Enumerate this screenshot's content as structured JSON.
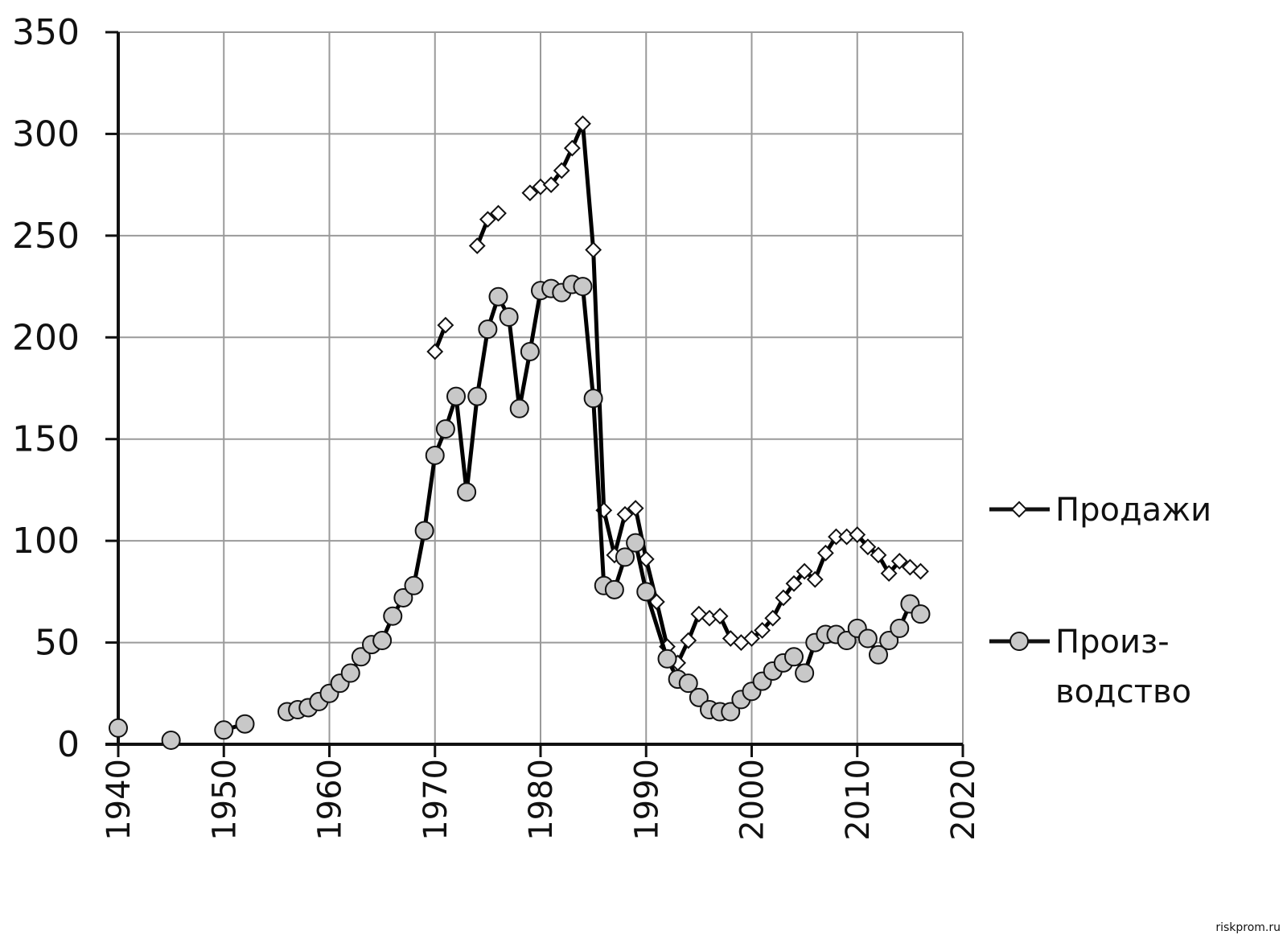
{
  "chart_data": {
    "type": "line",
    "title": "",
    "xlabel": "",
    "ylabel": "",
    "xlim": [
      1940,
      2020
    ],
    "ylim": [
      0,
      350
    ],
    "x_ticks": [
      "1940",
      "1950",
      "1960",
      "1970",
      "1980",
      "1990",
      "2000",
      "2010",
      "2020"
    ],
    "y_ticks": [
      "0",
      "50",
      "100",
      "150",
      "200",
      "250",
      "300",
      "350"
    ],
    "grid": true,
    "legend_position": "right",
    "series": [
      {
        "name": "Продажи",
        "marker": "diamond",
        "marker_fill": "#ffffff",
        "line_color": "#000000",
        "points": [
          [
            1970,
            193
          ],
          [
            1971,
            206
          ],
          [
            1974,
            245
          ],
          [
            1975,
            258
          ],
          [
            1976,
            261
          ],
          [
            1979,
            271
          ],
          [
            1980,
            274
          ],
          [
            1981,
            275
          ],
          [
            1982,
            282
          ],
          [
            1983,
            293
          ],
          [
            1984,
            305
          ],
          [
            1985,
            243
          ],
          [
            1986,
            115
          ],
          [
            1987,
            93
          ],
          [
            1988,
            113
          ],
          [
            1989,
            116
          ],
          [
            1990,
            91
          ],
          [
            1991,
            70
          ],
          [
            1992,
            48
          ],
          [
            1993,
            40
          ],
          [
            1994,
            51
          ],
          [
            1995,
            64
          ],
          [
            1996,
            62
          ],
          [
            1997,
            63
          ],
          [
            1998,
            52
          ],
          [
            1999,
            50
          ],
          [
            2000,
            52
          ],
          [
            2001,
            56
          ],
          [
            2002,
            62
          ],
          [
            2003,
            72
          ],
          [
            2004,
            79
          ],
          [
            2005,
            85
          ],
          [
            2006,
            81
          ],
          [
            2007,
            94
          ],
          [
            2008,
            102
          ],
          [
            2009,
            102
          ],
          [
            2010,
            103
          ],
          [
            2011,
            97
          ],
          [
            2012,
            93
          ],
          [
            2013,
            84
          ],
          [
            2014,
            90
          ],
          [
            2015,
            87
          ],
          [
            2016,
            85
          ]
        ]
      },
      {
        "name": "Произ-водство",
        "marker": "circle",
        "marker_fill": "#c8c8c8",
        "line_color": "#000000",
        "points": [
          [
            1940,
            8
          ],
          [
            1945,
            2
          ],
          [
            1950,
            7
          ],
          [
            1952,
            10
          ],
          [
            1956,
            16
          ],
          [
            1957,
            17
          ],
          [
            1958,
            18
          ],
          [
            1959,
            21
          ],
          [
            1960,
            25
          ],
          [
            1961,
            30
          ],
          [
            1962,
            35
          ],
          [
            1963,
            43
          ],
          [
            1964,
            49
          ],
          [
            1965,
            51
          ],
          [
            1966,
            63
          ],
          [
            1967,
            72
          ],
          [
            1968,
            78
          ],
          [
            1969,
            105
          ],
          [
            1970,
            142
          ],
          [
            1971,
            155
          ],
          [
            1972,
            171
          ],
          [
            1973,
            124
          ],
          [
            1974,
            171
          ],
          [
            1975,
            204
          ],
          [
            1976,
            220
          ],
          [
            1977,
            210
          ],
          [
            1978,
            165
          ],
          [
            1979,
            193
          ],
          [
            1980,
            223
          ],
          [
            1981,
            224
          ],
          [
            1982,
            222
          ],
          [
            1983,
            226
          ],
          [
            1984,
            225
          ],
          [
            1985,
            170
          ],
          [
            1986,
            78
          ],
          [
            1987,
            76
          ],
          [
            1988,
            92
          ],
          [
            1989,
            99
          ],
          [
            1990,
            75
          ],
          [
            1991,
            null
          ],
          [
            1992,
            42
          ],
          [
            1993,
            32
          ],
          [
            1994,
            30
          ],
          [
            1995,
            23
          ],
          [
            1996,
            17
          ],
          [
            1997,
            16
          ],
          [
            1998,
            16
          ],
          [
            1999,
            22
          ],
          [
            2000,
            26
          ],
          [
            2001,
            31
          ],
          [
            2002,
            36
          ],
          [
            2003,
            40
          ],
          [
            2004,
            43
          ],
          [
            2005,
            35
          ],
          [
            2006,
            50
          ],
          [
            2007,
            54
          ],
          [
            2008,
            54
          ],
          [
            2009,
            51
          ],
          [
            2010,
            57
          ],
          [
            2011,
            52
          ],
          [
            2012,
            44
          ],
          [
            2013,
            51
          ],
          [
            2014,
            57
          ],
          [
            2015,
            69
          ],
          [
            2016,
            64
          ]
        ]
      }
    ],
    "legend": [
      {
        "lines": [
          "Продажи"
        ]
      },
      {
        "lines": [
          "Произ-",
          "водство"
        ]
      }
    ]
  },
  "watermark": "riskprom.ru"
}
